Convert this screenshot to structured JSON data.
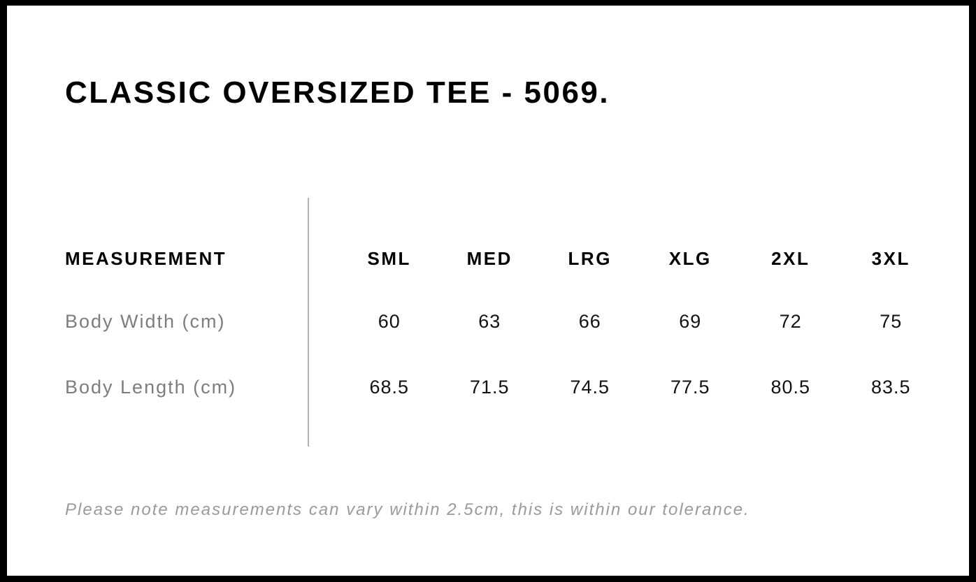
{
  "colors": {
    "background": "#ffffff",
    "frame_border": "#000000",
    "title_text": "#000000",
    "header_text": "#000000",
    "value_text": "#121212",
    "row_label_text": "#7d7d7d",
    "note_text": "#9a9a9a",
    "divider": "#b3b3b3"
  },
  "chart_data": {
    "type": "table",
    "title": "CLASSIC OVERSIZED TEE - 5069.",
    "measurement_header": "MEASUREMENT",
    "size_columns": [
      "SML",
      "MED",
      "LRG",
      "XLG",
      "2XL",
      "3XL"
    ],
    "rows": [
      {
        "label": "Body Width (cm)",
        "values": [
          "60",
          "63",
          "66",
          "69",
          "72",
          "75"
        ]
      },
      {
        "label": "Body Length (cm)",
        "values": [
          "68.5",
          "71.5",
          "74.5",
          "77.5",
          "80.5",
          "83.5"
        ]
      }
    ],
    "note": "Please note measurements can vary within 2.5cm, this is within our tolerance."
  }
}
